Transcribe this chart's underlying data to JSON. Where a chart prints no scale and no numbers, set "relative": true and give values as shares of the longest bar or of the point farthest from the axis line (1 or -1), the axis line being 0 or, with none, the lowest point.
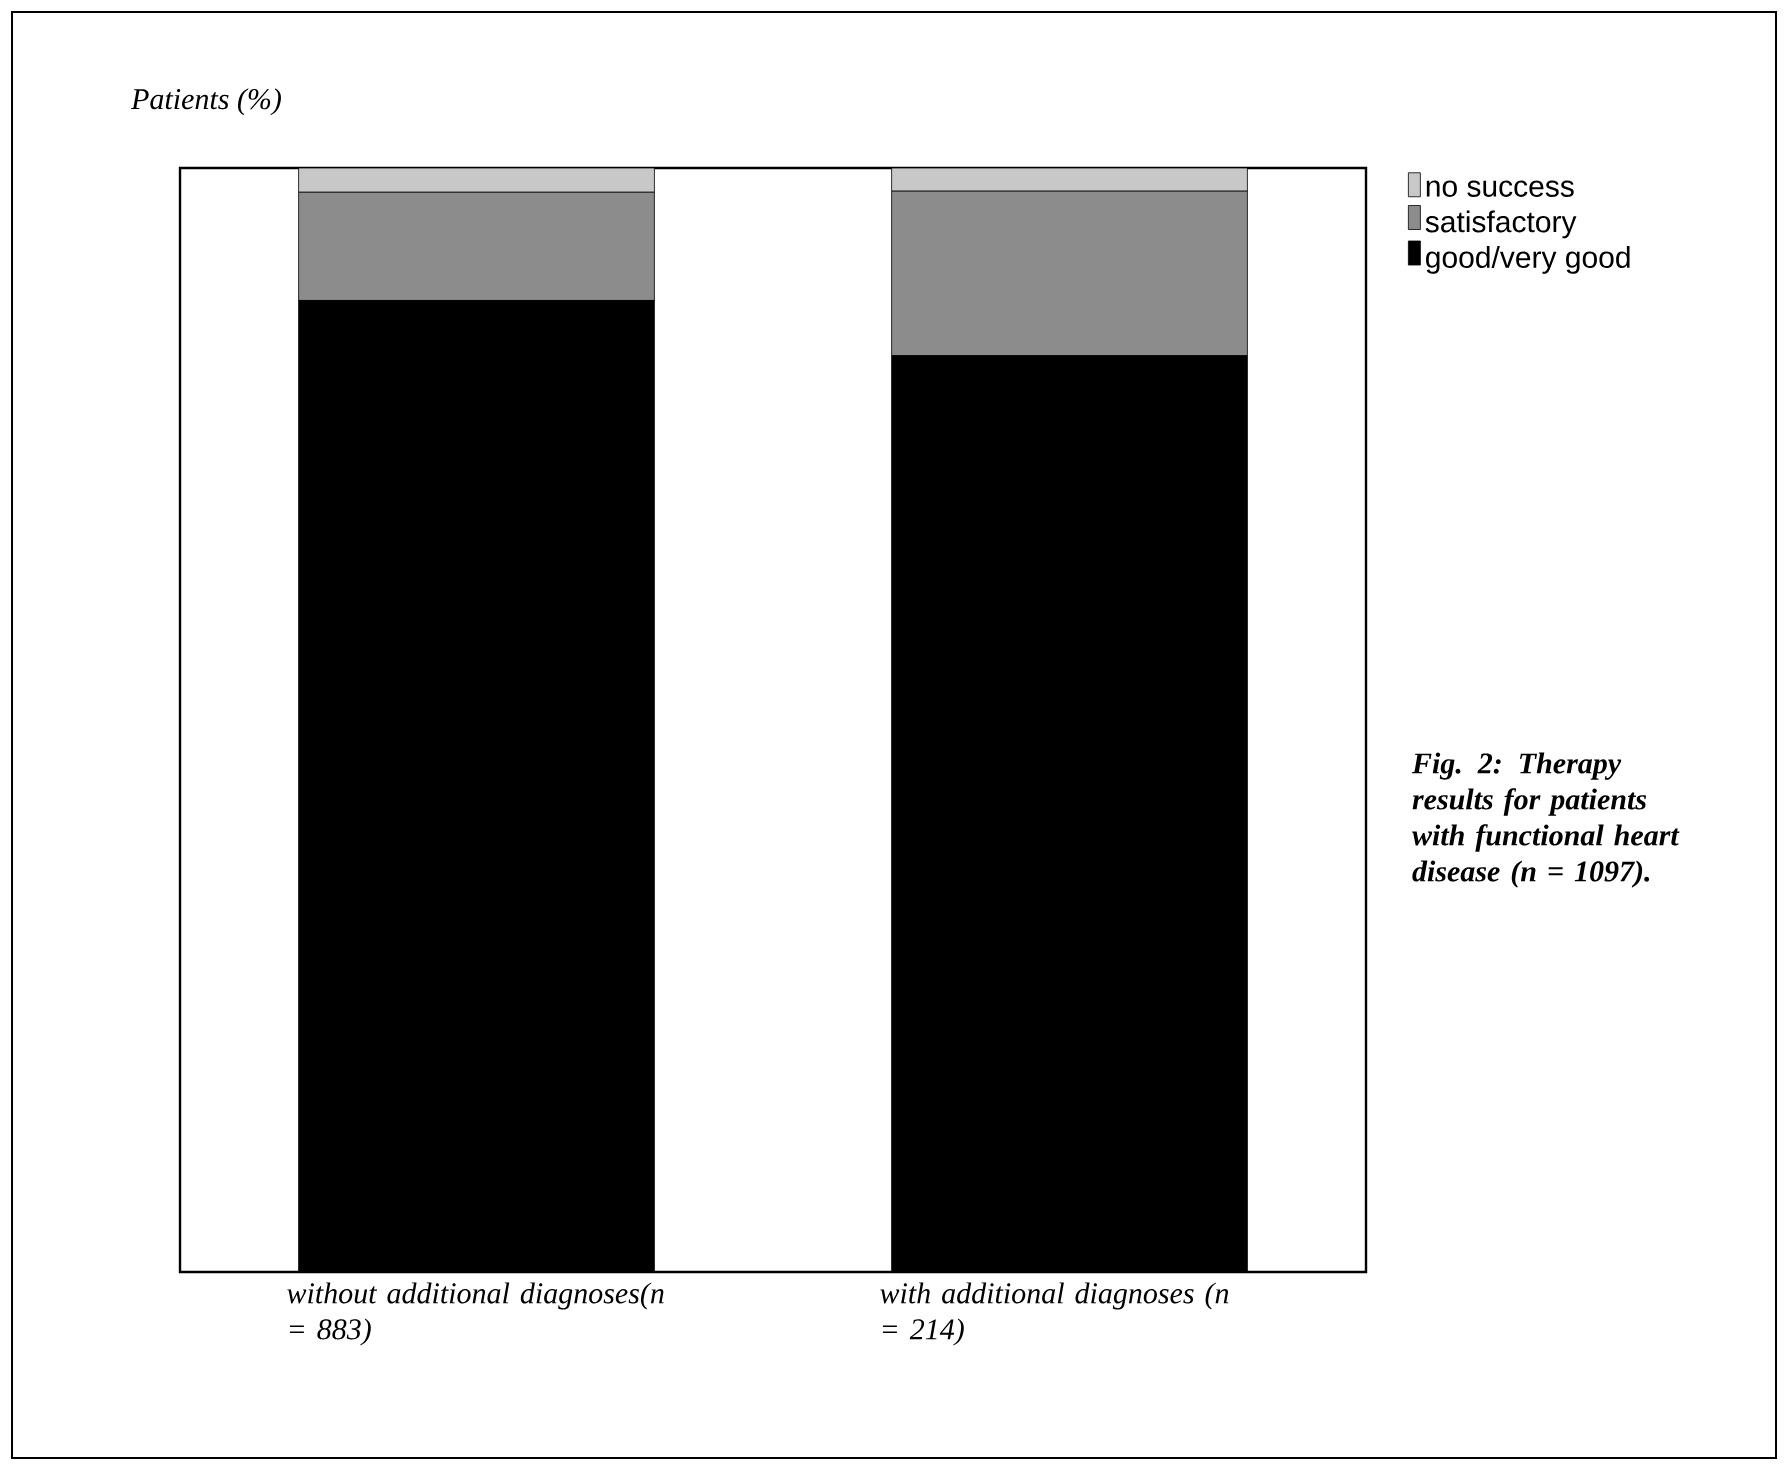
{
  "chart_data": {
    "type": "bar",
    "stacked": true,
    "relative": true,
    "ylabel": "Patients (%)",
    "categories": [
      "without additional diagnoses(n = 883)",
      "with additional diagnoses (n = 214)"
    ],
    "series": [
      {
        "name": "good/very good",
        "color": "#000000",
        "values": [
          0.88,
          0.83
        ]
      },
      {
        "name": "satisfactory",
        "color": "#8c8c8c",
        "values": [
          0.098,
          0.149
        ]
      },
      {
        "name": "no success",
        "color": "#c8c8c8",
        "values": [
          0.022,
          0.021
        ]
      }
    ],
    "legend": "right",
    "annotations": [
      "Fig. 2: Therapy results for patients with functional heart disease (n = 1097)."
    ]
  }
}
